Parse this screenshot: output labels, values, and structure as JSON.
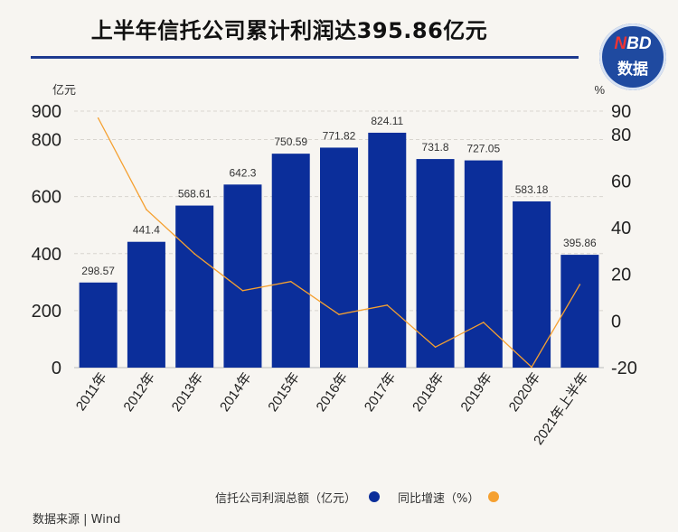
{
  "title": "上半年信托公司累计利润达395.86亿元",
  "logo": {
    "line1_n": "N",
    "line1_rest": "BD",
    "line2": "数据"
  },
  "legend": {
    "bar_label": "信托公司利润总额（亿元）",
    "line_label": "同比增速（%）"
  },
  "source": "数据来源 | Wind",
  "colors": {
    "bar": "#0b2e9a",
    "line": "#f5a030",
    "title_rule": "#1d3a8f"
  },
  "chart_data": {
    "type": "bar",
    "categories": [
      "2011年",
      "2012年",
      "2013年",
      "2014年",
      "2015年",
      "2016年",
      "2017年",
      "2018年",
      "2019年",
      "2020年",
      "2021年上半年"
    ],
    "series": [
      {
        "name": "信托公司利润总额（亿元）",
        "type": "bar",
        "axis": "left",
        "values": [
          298.57,
          441.4,
          568.61,
          642.3,
          750.59,
          771.82,
          824.11,
          731.8,
          727.05,
          583.18,
          395.86
        ]
      },
      {
        "name": "同比增速（%）",
        "type": "line",
        "axis": "right",
        "values": [
          87.0,
          47.8,
          28.8,
          13.0,
          16.9,
          2.8,
          6.8,
          -11.2,
          -0.6,
          -19.8,
          15.6
        ]
      }
    ],
    "left_axis": {
      "unit": "亿元",
      "ylim": [
        0,
        900
      ],
      "ticks": [
        0,
        200,
        400,
        600,
        800,
        900
      ]
    },
    "right_axis": {
      "unit": "%",
      "ylim": [
        -20,
        90
      ],
      "ticks": [
        -20,
        0,
        20,
        40,
        60,
        80,
        90
      ]
    },
    "grid": true,
    "legend_position": "bottom"
  }
}
